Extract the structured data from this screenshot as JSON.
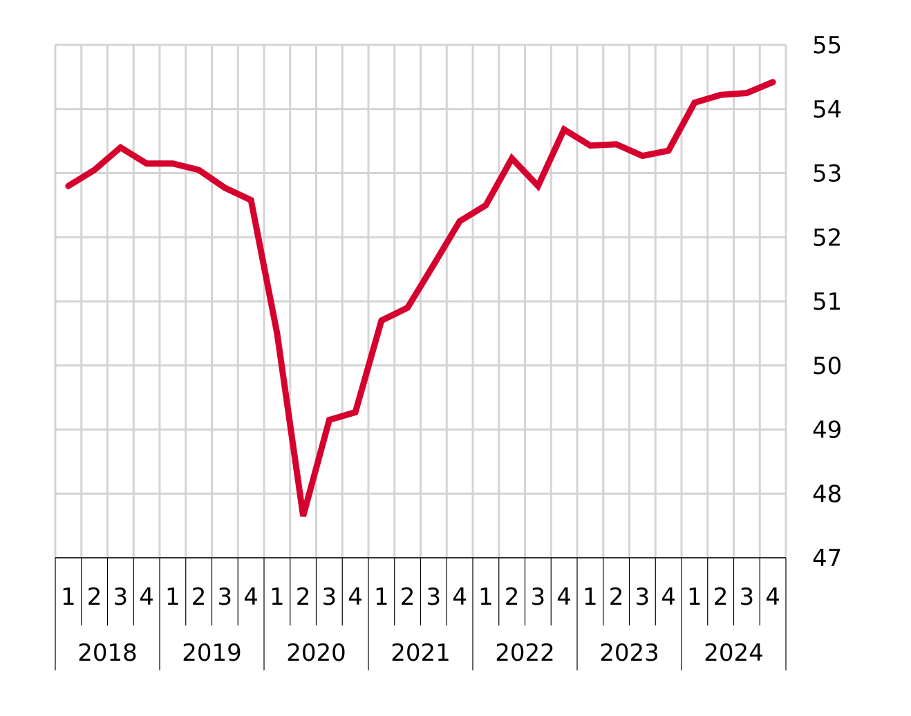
{
  "chart_data": {
    "type": "line",
    "title": "",
    "xlabel": "",
    "ylabel": "",
    "ylim": [
      47,
      55
    ],
    "y_ticks": [
      "47",
      "48",
      "49",
      "50",
      "51",
      "52",
      "53",
      "54",
      "55"
    ],
    "y_axis_side": "right",
    "grid": true,
    "years": [
      "2018",
      "2019",
      "2020",
      "2021",
      "2022",
      "2023",
      "2024"
    ],
    "quarters": [
      "1",
      "2",
      "3",
      "4"
    ],
    "series": [
      {
        "color": "#d6002f",
        "values": [
          52.8,
          53.05,
          53.4,
          53.15,
          53.15,
          53.05,
          52.77,
          52.58,
          50.5,
          47.65,
          49.15,
          49.27,
          50.7,
          50.9,
          51.57,
          52.25,
          52.5,
          53.23,
          52.8,
          53.68,
          53.43,
          53.45,
          53.27,
          53.35,
          54.1,
          54.22,
          54.25,
          54.42
        ]
      }
    ]
  }
}
